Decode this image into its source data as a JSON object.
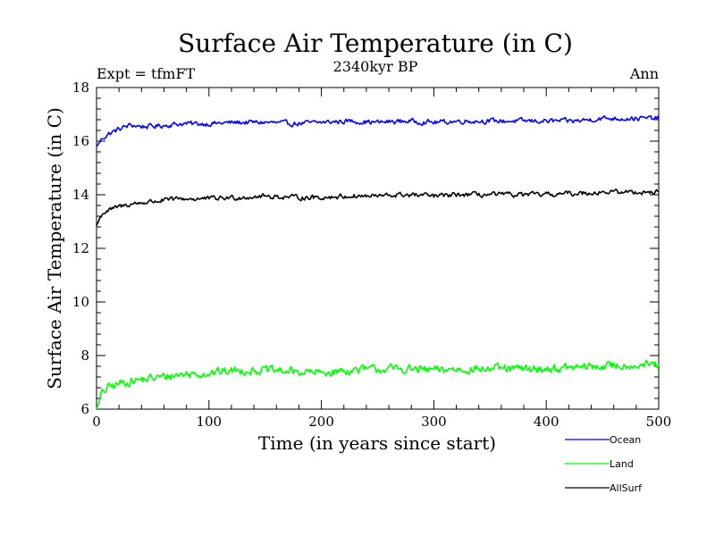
{
  "chart_data": {
    "type": "line",
    "title": "Surface Air Temperature (in C)",
    "subtitle": "2340kyr BP",
    "left_label": "Expt = tfmFT",
    "right_label": "Ann",
    "xlabel": "Time (in years since start)",
    "ylabel": "Surface Air Temperature (in C)",
    "xlim": [
      0,
      500
    ],
    "ylim": [
      6,
      18
    ],
    "x_ticks": [
      0,
      100,
      200,
      300,
      400,
      500
    ],
    "y_ticks": [
      6,
      8,
      10,
      12,
      14,
      16,
      18
    ],
    "x_tick_labels": [
      "0",
      "100",
      "200",
      "300",
      "400",
      "500"
    ],
    "y_tick_labels": [
      "6",
      "8",
      "10",
      "12",
      "14",
      "16",
      "18"
    ],
    "grid": false,
    "legend_position": "bottom-right, below plot",
    "series": [
      {
        "name": "Ocean",
        "color": "#0000ff",
        "x": [
          0,
          5,
          10,
          20,
          30,
          40,
          50,
          75,
          100,
          125,
          150,
          175,
          200,
          225,
          250,
          275,
          300,
          325,
          350,
          375,
          400,
          425,
          450,
          475,
          500
        ],
        "values": [
          15.8,
          16.1,
          16.25,
          16.45,
          16.6,
          16.55,
          16.55,
          16.65,
          16.65,
          16.7,
          16.7,
          16.65,
          16.7,
          16.75,
          16.7,
          16.75,
          16.7,
          16.75,
          16.75,
          16.75,
          16.75,
          16.75,
          16.85,
          16.85,
          16.85
        ]
      },
      {
        "name": "Land",
        "color": "#00ff00",
        "x": [
          0,
          5,
          10,
          20,
          30,
          40,
          50,
          75,
          100,
          125,
          150,
          175,
          200,
          225,
          250,
          275,
          300,
          325,
          350,
          375,
          400,
          425,
          450,
          475,
          500
        ],
        "values": [
          6.0,
          6.6,
          6.8,
          6.95,
          7.05,
          7.1,
          7.15,
          7.3,
          7.35,
          7.45,
          7.45,
          7.4,
          7.35,
          7.45,
          7.5,
          7.5,
          7.45,
          7.5,
          7.5,
          7.5,
          7.5,
          7.55,
          7.6,
          7.65,
          7.65
        ]
      },
      {
        "name": "AllSurf",
        "color": "#000000",
        "x": [
          0,
          5,
          10,
          20,
          30,
          40,
          50,
          75,
          100,
          125,
          150,
          175,
          200,
          225,
          250,
          275,
          300,
          325,
          350,
          375,
          400,
          425,
          450,
          475,
          500
        ],
        "values": [
          12.85,
          13.3,
          13.4,
          13.55,
          13.65,
          13.7,
          13.75,
          13.85,
          13.85,
          13.9,
          13.95,
          13.9,
          13.9,
          13.95,
          13.95,
          14.0,
          13.95,
          14.0,
          14.0,
          14.0,
          14.0,
          14.05,
          14.1,
          14.1,
          14.1
        ]
      }
    ]
  }
}
